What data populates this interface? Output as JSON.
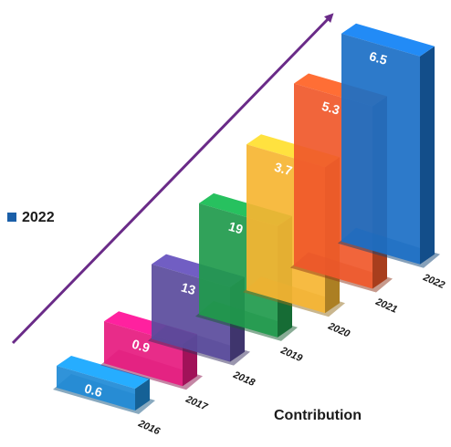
{
  "legend_label": "2022",
  "footer": "Contribution",
  "chart_data": {
    "type": "bar",
    "categories": [
      "2016",
      "2017",
      "2018",
      "2019",
      "2020",
      "2021",
      "2022"
    ],
    "values": [
      0.6,
      0.9,
      13,
      19,
      3.7,
      5.3,
      6.5
    ],
    "colors": [
      "#1e8ad6",
      "#e61a7f",
      "#5a4b9c",
      "#1f9a4c",
      "#f6b532",
      "#f0582a",
      "#1b6fc5"
    ]
  }
}
